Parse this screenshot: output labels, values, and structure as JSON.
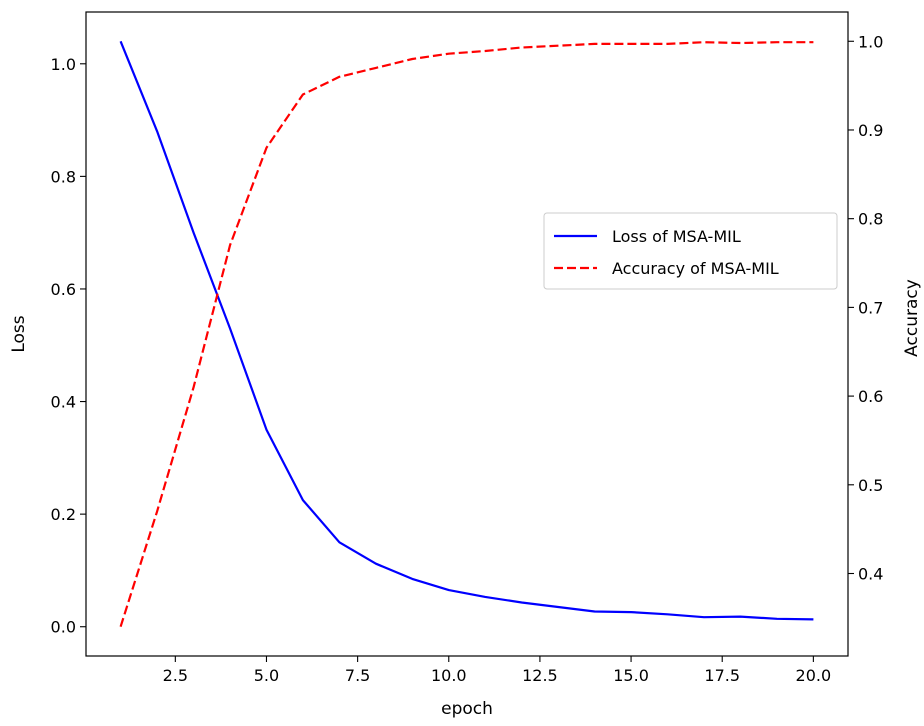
{
  "chart_data": {
    "type": "line",
    "x": [
      1,
      2,
      3,
      4,
      5,
      6,
      7,
      8,
      9,
      10,
      11,
      12,
      13,
      14,
      15,
      16,
      17,
      18,
      19,
      20
    ],
    "series": [
      {
        "name": "Loss of MSA-MIL",
        "axis": "left",
        "color": "#0000ff",
        "style": "solid",
        "values": [
          1.04,
          0.88,
          0.7,
          0.53,
          0.35,
          0.225,
          0.15,
          0.112,
          0.085,
          0.065,
          0.053,
          0.043,
          0.035,
          0.027,
          0.026,
          0.022,
          0.017,
          0.018,
          0.014,
          0.013
        ]
      },
      {
        "name": "Accuracy of MSA-MIL",
        "axis": "right",
        "color": "#ff0000",
        "style": "dashed",
        "values": [
          0.34,
          0.47,
          0.61,
          0.77,
          0.88,
          0.94,
          0.96,
          0.97,
          0.98,
          0.986,
          0.989,
          0.993,
          0.995,
          0.997,
          0.997,
          0.997,
          0.999,
          0.998,
          0.999,
          0.999
        ]
      }
    ],
    "xlabel": "epoch",
    "ylabel": "Loss",
    "y2label": "Accuracy",
    "xlim": [
      0.05,
      20.95
    ],
    "ylim": [
      -0.052,
      1.092
    ],
    "y2lim": [
      0.307,
      1.033
    ],
    "xticks": [
      "2.5",
      "5.0",
      "7.5",
      "10.0",
      "12.5",
      "15.0",
      "17.5",
      "20.0"
    ],
    "yticks": [
      "0.0",
      "0.2",
      "0.4",
      "0.6",
      "0.8",
      "1.0"
    ],
    "y2ticks": [
      "0.4",
      "0.5",
      "0.6",
      "0.7",
      "0.8",
      "0.9",
      "1.0"
    ],
    "grid": false,
    "legend_position": "center-right"
  }
}
